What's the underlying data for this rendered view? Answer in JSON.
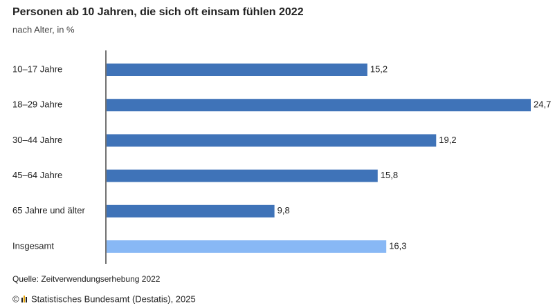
{
  "chart_data": {
    "type": "bar",
    "orientation": "horizontal",
    "title": "Personen ab 10 Jahren, die sich oft einsam fühlen 2022",
    "subtitle": "nach Alter, in %",
    "categories": [
      "10–17 Jahre",
      "18–29 Jahre",
      "30–44 Jahre",
      "45–64 Jahre",
      "65 Jahre und älter",
      "Insgesamt"
    ],
    "values": [
      15.2,
      24.7,
      19.2,
      15.8,
      9.8,
      16.3
    ],
    "value_labels": [
      "15,2",
      "24,7",
      "19,2",
      "15,8",
      "9,8",
      "16,3"
    ],
    "colors": [
      "#3f73b8",
      "#3f73b8",
      "#3f73b8",
      "#3f73b8",
      "#3f73b8",
      "#88b8f5"
    ],
    "source": "Quelle: Zeitverwendungserhebung 2022",
    "copyright_symbol": "©",
    "copyright": "Statistisches Bundesamt (Destatis), 2025"
  }
}
